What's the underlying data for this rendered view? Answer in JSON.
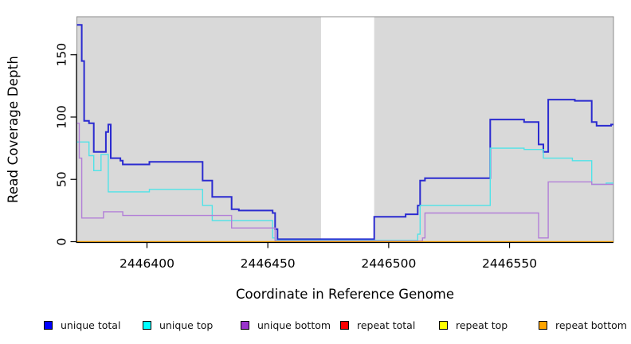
{
  "chart_data": {
    "type": "line",
    "step_style": "step-after",
    "title": "",
    "xlabel": "Coordinate in Reference Genome",
    "ylabel": "Read Coverage Depth",
    "xlim": [
      2446371,
      2446593
    ],
    "ylim": [
      0,
      180.5
    ],
    "x_ticks": [
      2446400,
      2446450,
      2446500,
      2446550
    ],
    "y_ticks": [
      0,
      50,
      100,
      150
    ],
    "grid": false,
    "legend_position": "bottom",
    "plot_bg": "#D9D9D9",
    "masked_region": {
      "x_start": 2446472,
      "x_end": 2446494,
      "color": "#FFFFFF"
    },
    "series": [
      {
        "name": "unique total",
        "color": "#2B2BD0",
        "legend_color": "#0000FF",
        "width": 2,
        "points": [
          [
            2446371,
            174
          ],
          [
            2446373,
            145
          ],
          [
            2446374,
            97
          ],
          [
            2446376,
            95
          ],
          [
            2446378,
            72
          ],
          [
            2446383,
            88
          ],
          [
            2446384,
            94
          ],
          [
            2446385,
            67
          ],
          [
            2446389,
            65
          ],
          [
            2446390,
            62
          ],
          [
            2446401,
            64
          ],
          [
            2446423,
            49
          ],
          [
            2446427,
            36
          ],
          [
            2446435,
            26
          ],
          [
            2446438,
            25
          ],
          [
            2446452,
            23
          ],
          [
            2446453,
            10
          ],
          [
            2446454,
            2
          ],
          [
            2446494,
            20
          ],
          [
            2446507,
            22
          ],
          [
            2446512,
            29
          ],
          [
            2446513,
            49
          ],
          [
            2446515,
            51
          ],
          [
            2446542,
            98
          ],
          [
            2446556,
            96
          ],
          [
            2446562,
            78
          ],
          [
            2446564,
            72
          ],
          [
            2446566,
            114
          ],
          [
            2446577,
            113
          ],
          [
            2446584,
            96
          ],
          [
            2446586,
            93
          ],
          [
            2446592,
            94
          ]
        ]
      },
      {
        "name": "unique top",
        "color": "#4FE3E8",
        "legend_color": "#00FFFF",
        "width": 1.4,
        "points": [
          [
            2446371,
            80
          ],
          [
            2446376,
            69
          ],
          [
            2446378,
            57
          ],
          [
            2446381,
            70
          ],
          [
            2446384,
            40
          ],
          [
            2446401,
            42
          ],
          [
            2446423,
            29
          ],
          [
            2446427,
            17
          ],
          [
            2446452,
            3
          ],
          [
            2446453,
            1
          ],
          [
            2446512,
            6
          ],
          [
            2446513,
            29
          ],
          [
            2446542,
            75
          ],
          [
            2446556,
            74
          ],
          [
            2446564,
            67
          ],
          [
            2446576,
            65
          ],
          [
            2446584,
            46
          ],
          [
            2446590,
            47
          ]
        ]
      },
      {
        "name": "unique bottom",
        "color": "#B27FD8",
        "legend_color": "#9933CC",
        "width": 1.4,
        "points": [
          [
            2446371,
            95
          ],
          [
            2446372,
            67
          ],
          [
            2446373,
            19
          ],
          [
            2446382,
            24
          ],
          [
            2446390,
            21
          ],
          [
            2446435,
            11
          ],
          [
            2446453,
            0.5
          ],
          [
            2446514,
            3
          ],
          [
            2446515,
            23
          ],
          [
            2446562,
            3
          ],
          [
            2446566,
            48
          ],
          [
            2446584,
            46
          ]
        ]
      },
      {
        "name": "repeat total",
        "color": "#EE0000",
        "legend_color": "#FF0000",
        "width": 1,
        "points": [
          [
            2446371,
            0
          ]
        ]
      },
      {
        "name": "repeat top",
        "color": "#FFFF00",
        "legend_color": "#FFFF00",
        "width": 1,
        "points": [
          [
            2446371,
            0
          ]
        ]
      },
      {
        "name": "repeat bottom",
        "color": "#FFA500",
        "legend_color": "#FFA500",
        "width": 1.6,
        "points": [
          [
            2446371,
            0
          ]
        ]
      }
    ]
  }
}
